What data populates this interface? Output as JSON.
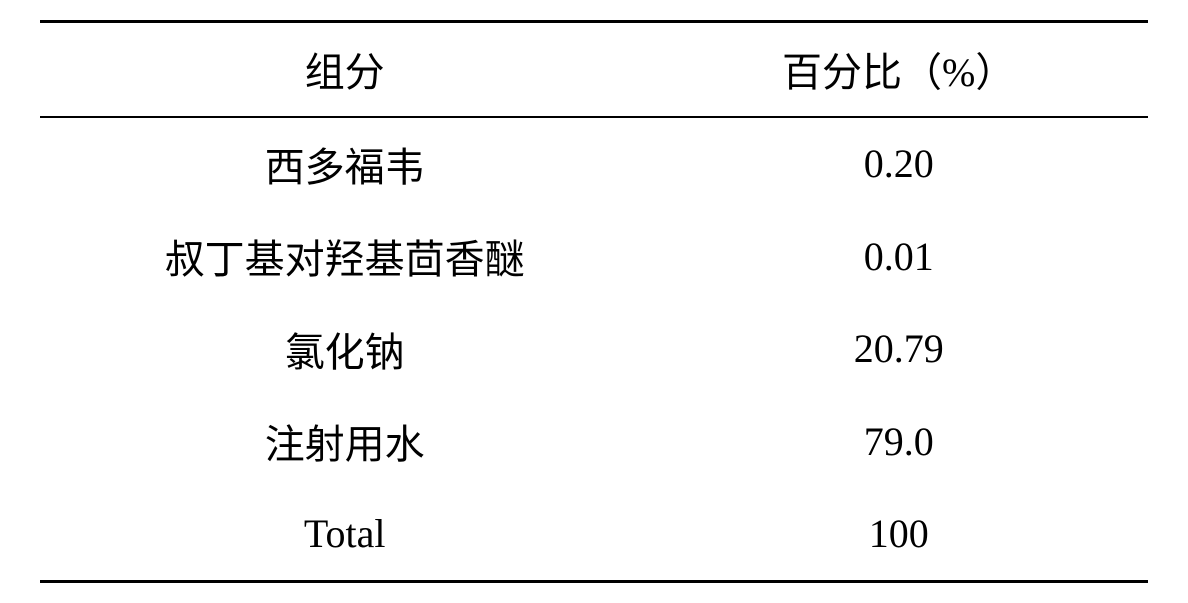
{
  "table": {
    "header": {
      "col1": "组分",
      "col2": "百分比（%）"
    },
    "rows": [
      {
        "name": "西多福韦",
        "value": "0.20"
      },
      {
        "name": "叔丁基对羟基茴香醚",
        "value": "0.01"
      },
      {
        "name": "氯化钠",
        "value": "20.79"
      },
      {
        "name": "注射用水",
        "value": "79.0"
      },
      {
        "name": "Total",
        "value": "100"
      }
    ],
    "border_color": "#000000",
    "background_color": "#ffffff",
    "font_size_pt": 30,
    "row_count": 5
  }
}
